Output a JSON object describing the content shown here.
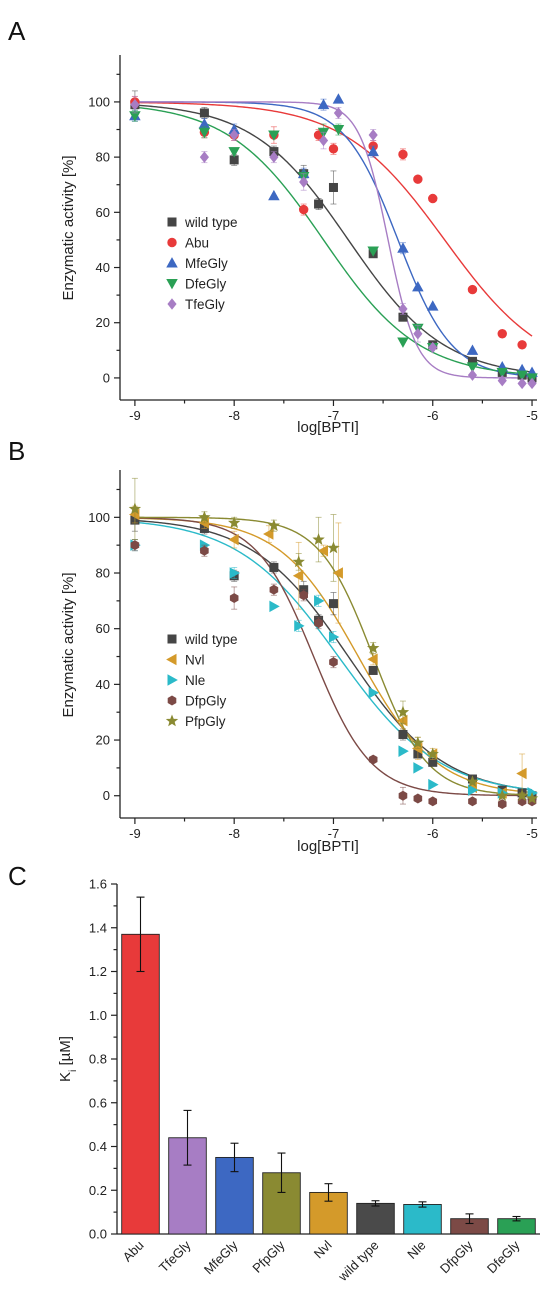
{
  "chart_data": [
    {
      "panel": "A",
      "type": "scatter",
      "xlabel": "log[BPTI]",
      "ylabel": "Enzymatic activity [%]",
      "xlim": [
        -9.15,
        -4.95
      ],
      "ylim": [
        -8,
        117
      ],
      "xticks": [
        -9,
        -8,
        -7,
        -6,
        -5
      ],
      "xtick_labels": [
        "-9",
        "-8",
        "-7",
        "-6",
        "-5"
      ],
      "yticks": [
        0,
        20,
        40,
        60,
        80,
        100
      ],
      "ytick_labels": [
        "0",
        "20",
        "40",
        "60",
        "80",
        "100"
      ],
      "legend_position": "middle-left",
      "series": [
        {
          "name": "wild type",
          "color": "#454545",
          "marker": "square",
          "fit_logIC50": -6.85,
          "fit_hill": 0.9,
          "points": [
            [
              -9,
              99
            ],
            [
              -8.3,
              96
            ],
            [
              -8,
              79
            ],
            [
              -7.6,
              82
            ],
            [
              -7.3,
              74
            ],
            [
              -7.15,
              63
            ],
            [
              -7,
              69
            ],
            [
              -6.6,
              45
            ],
            [
              -6.3,
              22
            ],
            [
              -6,
              12
            ],
            [
              -5.6,
              6
            ],
            [
              -5.3,
              2
            ],
            [
              -5.1,
              1
            ],
            [
              -5,
              0
            ]
          ],
          "errors": [
            5,
            2,
            2,
            2,
            3,
            2,
            6,
            1,
            1,
            1,
            1,
            1,
            1,
            1
          ]
        },
        {
          "name": "Abu",
          "color": "#e83a3a",
          "marker": "circle",
          "fit_logIC50": -5.88,
          "fit_hill": 0.85,
          "points": [
            [
              -9,
              100
            ],
            [
              -8.3,
              89
            ],
            [
              -8,
              88
            ],
            [
              -7.6,
              88
            ],
            [
              -7.3,
              61
            ],
            [
              -7.15,
              88
            ],
            [
              -7,
              83
            ],
            [
              -6.6,
              84
            ],
            [
              -6.3,
              81
            ],
            [
              -6.15,
              72
            ],
            [
              -6,
              65
            ],
            [
              -5.6,
              32
            ],
            [
              -5.3,
              16
            ],
            [
              -5.1,
              12
            ]
          ],
          "errors": [
            2,
            2,
            2,
            3,
            2,
            2,
            2,
            2,
            2,
            1,
            1,
            1,
            1,
            1
          ]
        },
        {
          "name": "MfeGly",
          "color": "#3d68c2",
          "marker": "triangle-up",
          "fit_logIC50": -6.35,
          "fit_hill": 1.6,
          "points": [
            [
              -9,
              95
            ],
            [
              -8.3,
              92
            ],
            [
              -8,
              90
            ],
            [
              -7.6,
              66
            ],
            [
              -7.3,
              74
            ],
            [
              -7.1,
              99
            ],
            [
              -6.95,
              101
            ],
            [
              -6.6,
              82
            ],
            [
              -6.3,
              47
            ],
            [
              -6.15,
              33
            ],
            [
              -6,
              26
            ],
            [
              -5.6,
              10
            ],
            [
              -5.3,
              4
            ],
            [
              -5.1,
              3
            ],
            [
              -5,
              2
            ]
          ],
          "errors": [
            2,
            2,
            2,
            1,
            2,
            2,
            1,
            2,
            2,
            1,
            1,
            1,
            1,
            1,
            1
          ]
        },
        {
          "name": "DfeGly",
          "color": "#2aa055",
          "marker": "triangle-down",
          "fit_logIC50": -7.1,
          "fit_hill": 0.9,
          "points": [
            [
              -9,
              95
            ],
            [
              -8.3,
              89
            ],
            [
              -8,
              82
            ],
            [
              -7.6,
              88
            ],
            [
              -7.3,
              73
            ],
            [
              -7.1,
              89
            ],
            [
              -6.95,
              90
            ],
            [
              -6.6,
              46
            ],
            [
              -6.3,
              13
            ],
            [
              -6.15,
              18
            ],
            [
              -6,
              11
            ],
            [
              -5.6,
              4
            ],
            [
              -5.3,
              2
            ],
            [
              -5.1,
              1
            ],
            [
              -5,
              0
            ]
          ],
          "errors": [
            2,
            2,
            1,
            1,
            2,
            3,
            2,
            1,
            1,
            1,
            1,
            1,
            1,
            1,
            1
          ]
        },
        {
          "name": "TfeGly",
          "color": "#a77dc4",
          "marker": "diamond",
          "fit_logIC50": -6.45,
          "fit_hill": 3.0,
          "points": [
            [
              -9,
              99
            ],
            [
              -8.3,
              80
            ],
            [
              -8,
              88
            ],
            [
              -7.6,
              80
            ],
            [
              -7.3,
              71
            ],
            [
              -7.1,
              86
            ],
            [
              -6.95,
              96
            ],
            [
              -6.6,
              88
            ],
            [
              -6.3,
              25
            ],
            [
              -6.15,
              16
            ],
            [
              -6,
              11
            ],
            [
              -5.6,
              1
            ],
            [
              -5.3,
              -1
            ],
            [
              -5.1,
              -2
            ],
            [
              -5,
              -2
            ]
          ],
          "errors": [
            3,
            2,
            2,
            2,
            3,
            3,
            2,
            2,
            2,
            3,
            1,
            1,
            1,
            1,
            1
          ]
        }
      ]
    },
    {
      "panel": "B",
      "type": "scatter",
      "xlabel": "log[BPTI]",
      "ylabel": "Enzymatic activity [%]",
      "xlim": [
        -9.15,
        -4.95
      ],
      "ylim": [
        -8,
        117
      ],
      "xticks": [
        -9,
        -8,
        -7,
        -6,
        -5
      ],
      "xtick_labels": [
        "-9",
        "-8",
        "-7",
        "-6",
        "-5"
      ],
      "yticks": [
        0,
        20,
        40,
        60,
        80,
        100
      ],
      "ytick_labels": [
        "0",
        "20",
        "40",
        "60",
        "80",
        "100"
      ],
      "legend_position": "middle-left",
      "series": [
        {
          "name": "wild type",
          "color": "#454545",
          "marker": "square",
          "fit_logIC50": -6.85,
          "fit_hill": 0.9,
          "points": [
            [
              -9,
              99
            ],
            [
              -8.3,
              96
            ],
            [
              -8,
              79
            ],
            [
              -7.6,
              82
            ],
            [
              -7.3,
              74
            ],
            [
              -7.15,
              63
            ],
            [
              -7,
              69
            ],
            [
              -6.6,
              45
            ],
            [
              -6.3,
              22
            ],
            [
              -6.15,
              15
            ],
            [
              -6,
              12
            ],
            [
              -5.6,
              6
            ],
            [
              -5.3,
              2
            ],
            [
              -5.1,
              1
            ],
            [
              -5,
              0
            ]
          ],
          "errors": [
            4,
            2,
            2,
            2,
            3,
            2,
            4,
            1,
            2,
            1,
            1,
            1,
            1,
            1,
            1
          ]
        },
        {
          "name": "Nvl",
          "color": "#d49a2a",
          "marker": "triangle-left",
          "fit_logIC50": -6.75,
          "fit_hill": 1.1,
          "points": [
            [
              -9,
              101
            ],
            [
              -8.3,
              98
            ],
            [
              -8,
              92
            ],
            [
              -7.65,
              94
            ],
            [
              -7.35,
              79
            ],
            [
              -7.1,
              88
            ],
            [
              -6.95,
              80
            ],
            [
              -6.6,
              49
            ],
            [
              -6.3,
              27
            ],
            [
              -6.15,
              17
            ],
            [
              -6,
              15
            ],
            [
              -5.6,
              3
            ],
            [
              -5.3,
              1
            ],
            [
              -5.1,
              8
            ]
          ],
          "errors": [
            3,
            2,
            3,
            3,
            12,
            2,
            18,
            2,
            3,
            4,
            2,
            1,
            1,
            7
          ]
        },
        {
          "name": "Nle",
          "color": "#2bbac9",
          "marker": "triangle-right",
          "fit_logIC50": -6.95,
          "fit_hill": 0.85,
          "points": [
            [
              -9,
              90
            ],
            [
              -8.3,
              90
            ],
            [
              -8,
              80
            ],
            [
              -7.6,
              68
            ],
            [
              -7.35,
              61
            ],
            [
              -7.15,
              70
            ],
            [
              -7,
              57
            ],
            [
              -6.6,
              37
            ],
            [
              -6.3,
              16
            ],
            [
              -6.15,
              10
            ],
            [
              -6,
              4
            ],
            [
              -5.6,
              2
            ],
            [
              -5.3,
              1
            ],
            [
              -5,
              1
            ]
          ],
          "errors": [
            2,
            1,
            2,
            1,
            2,
            2,
            2,
            1,
            1,
            1,
            1,
            1,
            1,
            1
          ]
        },
        {
          "name": "DfpGly",
          "color": "#7c4a46",
          "marker": "hexagon",
          "fit_logIC50": -7.2,
          "fit_hill": 1.5,
          "points": [
            [
              -9,
              90
            ],
            [
              -8.3,
              88
            ],
            [
              -8,
              71
            ],
            [
              -7.6,
              74
            ],
            [
              -7.3,
              72
            ],
            [
              -7.15,
              62
            ],
            [
              -7,
              48
            ],
            [
              -6.6,
              13
            ],
            [
              -6.3,
              0
            ],
            [
              -6.15,
              -1
            ],
            [
              -6,
              -2
            ],
            [
              -5.6,
              -2
            ],
            [
              -5.3,
              -3
            ],
            [
              -5.1,
              -2
            ],
            [
              -5,
              -2
            ]
          ],
          "errors": [
            2,
            2,
            4,
            2,
            2,
            2,
            2,
            1,
            3,
            1,
            1,
            1,
            1,
            1,
            1
          ]
        },
        {
          "name": "PfpGly",
          "color": "#8a8a32",
          "marker": "star",
          "fit_logIC50": -6.6,
          "fit_hill": 1.6,
          "points": [
            [
              -9,
              103
            ],
            [
              -8.3,
              100
            ],
            [
              -8,
              98
            ],
            [
              -7.6,
              97
            ],
            [
              -7.35,
              84
            ],
            [
              -7.15,
              92
            ],
            [
              -7,
              89
            ],
            [
              -6.6,
              53
            ],
            [
              -6.3,
              30
            ],
            [
              -6.15,
              19
            ],
            [
              -6,
              15
            ],
            [
              -5.6,
              5
            ],
            [
              -5.3,
              0
            ],
            [
              -5.1,
              0
            ],
            [
              -5,
              -1
            ]
          ],
          "errors": [
            11,
            2,
            2,
            2,
            3,
            8,
            12,
            2,
            4,
            2,
            1,
            1,
            1,
            1,
            1
          ]
        }
      ]
    },
    {
      "panel": "C",
      "type": "bar",
      "xlabel": "",
      "ylabel_main": "K",
      "ylabel_sub": "i",
      "ylabel_unit": " [µM]",
      "ylim": [
        0,
        1.6
      ],
      "yticks": [
        0.0,
        0.2,
        0.4,
        0.6,
        0.8,
        1.0,
        1.2,
        1.4,
        1.6
      ],
      "ytick_labels": [
        "0.0",
        "0.2",
        "0.4",
        "0.6",
        "0.8",
        "1.0",
        "1.2",
        "1.4",
        "1.6"
      ],
      "categories": [
        "Abu",
        "TfeGly",
        "MfeGly",
        "PfpGly",
        "Nvl",
        "wild type",
        "Nle",
        "DfpGly",
        "DfeGly"
      ],
      "values": [
        1.37,
        0.44,
        0.35,
        0.28,
        0.19,
        0.14,
        0.135,
        0.07,
        0.07
      ],
      "errors": [
        0.17,
        0.125,
        0.065,
        0.09,
        0.04,
        0.012,
        0.012,
        0.022,
        0.01
      ],
      "colors": [
        "#e83a3a",
        "#a77dc4",
        "#3d68c2",
        "#8a8a32",
        "#d49a2a",
        "#4a4a4a",
        "#2bbac9",
        "#7c4a46",
        "#2aa055"
      ]
    }
  ]
}
